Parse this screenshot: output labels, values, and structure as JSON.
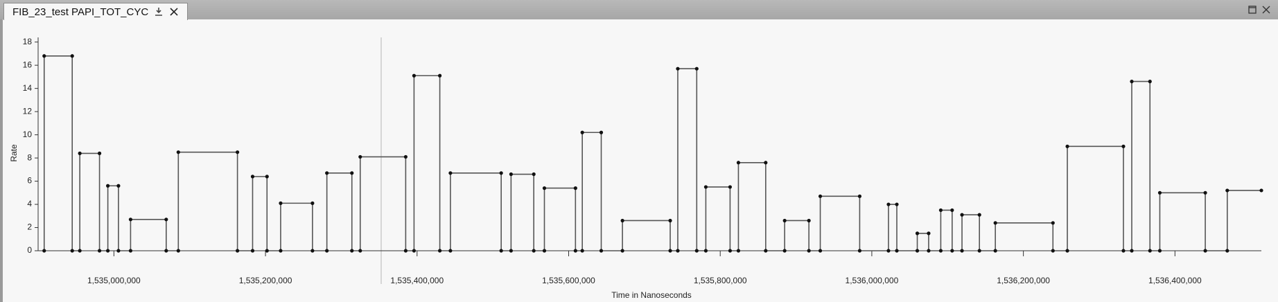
{
  "tab": {
    "title": "FIB_23_test PAPI_TOT_CYC"
  },
  "chart_data": {
    "type": "line",
    "x_label": "Time in Nanoseconds",
    "y_label": "Rate",
    "xlim": [
      1534900000,
      1536514000
    ],
    "ylim": [
      0,
      18.4
    ],
    "xticks": [
      {
        "value": 1535000000,
        "label": "1,535,000,000"
      },
      {
        "value": 1535200000,
        "label": "1,535,200,000"
      },
      {
        "value": 1535400000,
        "label": "1,535,400,000"
      },
      {
        "value": 1535600000,
        "label": "1,535,600,000"
      },
      {
        "value": 1535800000,
        "label": "1,535,800,000"
      },
      {
        "value": 1536000000,
        "label": "1,536,000,000"
      },
      {
        "value": 1536200000,
        "label": "1,536,200,000"
      },
      {
        "value": 1536400000,
        "label": "1,536,400,000"
      }
    ],
    "yticks": [
      0,
      2,
      4,
      6,
      8,
      10,
      12,
      14,
      16,
      18
    ],
    "grid": false,
    "markers": true,
    "marker_color": "#111111",
    "x": [
      1534908000,
      1534908000,
      1534945000,
      1534945000,
      1534955000,
      1534955000,
      1534981000,
      1534981000,
      1534992000,
      1534992000,
      1535006000,
      1535006000,
      1535022000,
      1535022000,
      1535069000,
      1535069000,
      1535085000,
      1535085000,
      1535163000,
      1535163000,
      1535183000,
      1535183000,
      1535202000,
      1535202000,
      1535220000,
      1535220000,
      1535262000,
      1535262000,
      1535281000,
      1535281000,
      1535314000,
      1535314000,
      1535325000,
      1535325000,
      1535385000,
      1535385000,
      1535396000,
      1535396000,
      1535430000,
      1535430000,
      1535444000,
      1535444000,
      1535511000,
      1535511000,
      1535524000,
      1535524000,
      1535554000,
      1535554000,
      1535568000,
      1535568000,
      1535609000,
      1535609000,
      1535618000,
      1535618000,
      1535643000,
      1535643000,
      1535671000,
      1535671000,
      1535734000,
      1535734000,
      1535744000,
      1535744000,
      1535769000,
      1535769000,
      1535781000,
      1535781000,
      1535813000,
      1535813000,
      1535824000,
      1535824000,
      1535860000,
      1535860000,
      1535885000,
      1535885000,
      1535917000,
      1535917000,
      1535932000,
      1535932000,
      1535984000,
      1535984000,
      1536022000,
      1536022000,
      1536033000,
      1536033000,
      1536060000,
      1536060000,
      1536075000,
      1536075000,
      1536091000,
      1536091000,
      1536106000,
      1536106000,
      1536119000,
      1536119000,
      1536142000,
      1536142000,
      1536163000,
      1536163000,
      1536239000,
      1536239000,
      1536258000,
      1536258000,
      1536332000,
      1536332000,
      1536343000,
      1536343000,
      1536367000,
      1536367000,
      1536380000,
      1536380000,
      1536440000,
      1536440000,
      1536469000,
      1536469000,
      1536514000
    ],
    "series": [
      {
        "color": "#555555",
        "values": [
          0,
          16.8,
          16.8,
          0,
          0,
          8.4,
          8.4,
          0,
          0,
          5.6,
          5.6,
          0,
          0,
          2.7,
          2.7,
          0,
          0,
          8.5,
          8.5,
          0,
          0,
          6.4,
          6.4,
          0,
          0,
          4.1,
          4.1,
          0,
          0,
          6.7,
          6.7,
          0,
          0,
          8.1,
          8.1,
          0,
          0,
          15.1,
          15.1,
          0,
          0,
          6.7,
          6.7,
          0,
          0,
          6.6,
          6.6,
          0,
          0,
          5.4,
          5.4,
          0,
          0,
          10.2,
          10.2,
          0,
          0,
          2.6,
          2.6,
          0,
          0,
          15.7,
          15.7,
          0,
          0,
          5.5,
          5.5,
          0,
          0,
          7.6,
          7.6,
          0,
          0,
          2.6,
          2.6,
          0,
          0,
          4.7,
          4.7,
          0,
          0,
          4.0,
          4.0,
          0,
          0,
          1.5,
          1.5,
          0,
          0,
          3.5,
          3.5,
          0,
          0,
          3.1,
          3.1,
          0,
          0,
          2.4,
          2.4,
          0,
          0,
          9.0,
          9.0,
          0,
          0,
          14.6,
          14.6,
          0,
          0,
          5.0,
          5.0,
          0,
          0,
          5.2,
          5.2
        ]
      }
    ]
  }
}
